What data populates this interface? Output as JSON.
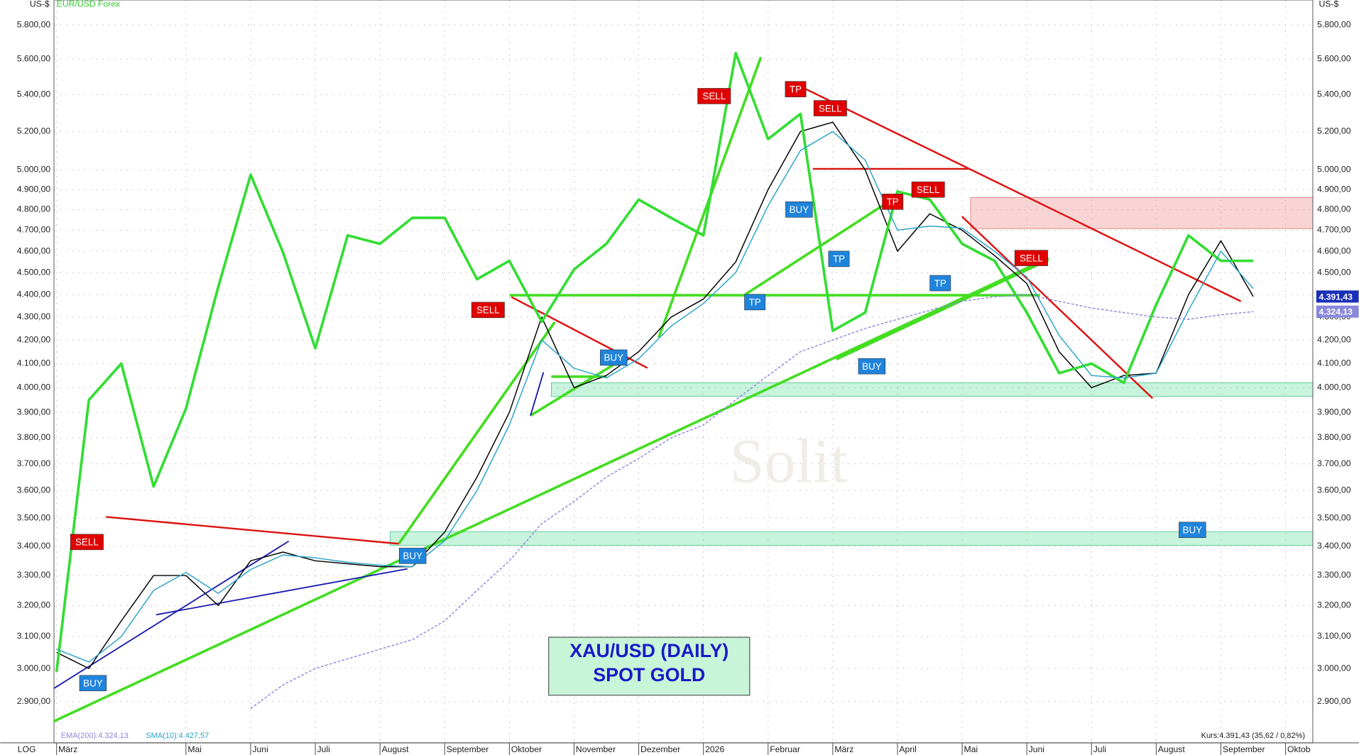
{
  "chart_data": {
    "type": "line",
    "title": "XAU/USD (DAILY)",
    "subtitle": "SPOT GOLD",
    "y_label": "US-$",
    "scale_label": "LOG",
    "log_scale": true,
    "grid": true,
    "watermark": "Solit",
    "quote": "Kurs:4.391,43 (35,62 / 0,82%)",
    "categories": [
      "März",
      null,
      null,
      null,
      "Mai",
      null,
      "Juni",
      null,
      "Juli",
      null,
      "August",
      null,
      "September",
      null,
      "Oktober",
      null,
      "November",
      null,
      "Dezember",
      null,
      "2026",
      null,
      "Februar",
      null,
      "März",
      null,
      "April",
      null,
      "Mai",
      null,
      "Juni",
      null,
      "Juli",
      null,
      "August",
      null,
      "September",
      null,
      "Oktob"
    ],
    "series": [
      {
        "name": "XAU/USD",
        "color": "#000000",
        "values": [
          3050,
          3000,
          3150,
          3300,
          3300,
          3200,
          3350,
          3380,
          3350,
          3340,
          3330,
          3330,
          3450,
          3650,
          3900,
          4300,
          4000,
          4050,
          4150,
          4300,
          4380,
          4550,
          4900,
          5200,
          5250,
          5000,
          4600,
          4780,
          4700,
          4580,
          4450,
          4150,
          4000,
          4050,
          4060,
          4400,
          4650,
          4391.43,
          null
        ]
      },
      {
        "name": "EUR/USD Forex",
        "color": "#33dd33",
        "values": [
          2990,
          3950,
          4100,
          3615,
          3915,
          4435,
          4975,
          4595,
          4165,
          4675,
          4635,
          4760,
          4760,
          4470,
          4555,
          4280,
          4515,
          4635,
          4850,
          4760,
          4675,
          5635,
          5160,
          5295,
          4240,
          4320,
          4890,
          4850,
          4635,
          4555,
          4320,
          4060,
          4100,
          4020,
          4355,
          4675,
          4555,
          4555,
          null
        ]
      },
      {
        "name": "SMA(10):4.427,57",
        "color": "#2aa3c8",
        "values": [
          3060,
          3020,
          3100,
          3250,
          3310,
          3240,
          3320,
          3370,
          3360,
          3345,
          3335,
          3330,
          3420,
          3600,
          3850,
          4200,
          4080,
          4040,
          4120,
          4260,
          4360,
          4500,
          4820,
          5100,
          5200,
          5050,
          4700,
          4720,
          4710,
          4600,
          4480,
          4220,
          4050,
          4040,
          4060,
          4330,
          4600,
          4427.57,
          null
        ]
      },
      {
        "name": "EMA(200):4.324,13",
        "color": "#8a88dd",
        "dashed": true,
        "values": [
          null,
          null,
          null,
          null,
          null,
          null,
          2880,
          2950,
          3000,
          3030,
          3060,
          3090,
          3150,
          3250,
          3350,
          3480,
          3560,
          3650,
          3720,
          3800,
          3850,
          3950,
          4050,
          4150,
          4200,
          4250,
          4290,
          4330,
          4370,
          4390,
          4400,
          4370,
          4340,
          4320,
          4300,
          4290,
          4310,
          4324.13,
          null
        ]
      }
    ],
    "price_tags": [
      {
        "value": 4391.43,
        "label": "4.391,43"
      },
      {
        "value": 4324.13,
        "label": "4.324,13"
      }
    ],
    "signals": [
      "SELL",
      "BUY",
      "BUY",
      "SELL",
      "BUY",
      "SELL",
      "TP",
      "SELL",
      "BUY",
      "TP",
      "TP",
      "TP",
      "SELL",
      "TP",
      "BUY",
      "SELL",
      "BUY"
    ],
    "ylim": [
      2780,
      5950
    ],
    "yticks": [
      {
        "value": 2900,
        "label": "2.900,00"
      },
      {
        "value": 3000,
        "label": "3.000,00"
      },
      {
        "value": 3100,
        "label": "3.100,00"
      },
      {
        "value": 3200,
        "label": "3.200,00"
      },
      {
        "value": 3300,
        "label": "3.300,00"
      },
      {
        "value": 3400,
        "label": "3.400,00"
      },
      {
        "value": 3500,
        "label": "3.500,00"
      },
      {
        "value": 3600,
        "label": "3.600,00"
      },
      {
        "value": 3700,
        "label": "3.700,00"
      },
      {
        "value": 3800,
        "label": "3.800,00"
      },
      {
        "value": 3900,
        "label": "3.900,00"
      },
      {
        "value": 4000,
        "label": "4.000,00"
      },
      {
        "value": 4100,
        "label": "4.100,00"
      },
      {
        "value": 4200,
        "label": "4.200,00"
      },
      {
        "value": 4300,
        "label": "4.300,00"
      },
      {
        "value": 4400,
        "label": "4.400,00"
      },
      {
        "value": 4500,
        "label": "4.500,00"
      },
      {
        "value": 4600,
        "label": "4.600,00"
      },
      {
        "value": 4700,
        "label": "4.700,00"
      },
      {
        "value": 4800,
        "label": "4.800,00"
      },
      {
        "value": 4900,
        "label": "4.900,00"
      },
      {
        "value": 5000,
        "label": "5.000,00"
      },
      {
        "value": 5200,
        "label": "5.200,00"
      },
      {
        "value": 5400,
        "label": "5.400,00"
      },
      {
        "value": 5600,
        "label": "5.600,00"
      },
      {
        "value": 5800,
        "label": "5.800,00"
      }
    ]
  }
}
